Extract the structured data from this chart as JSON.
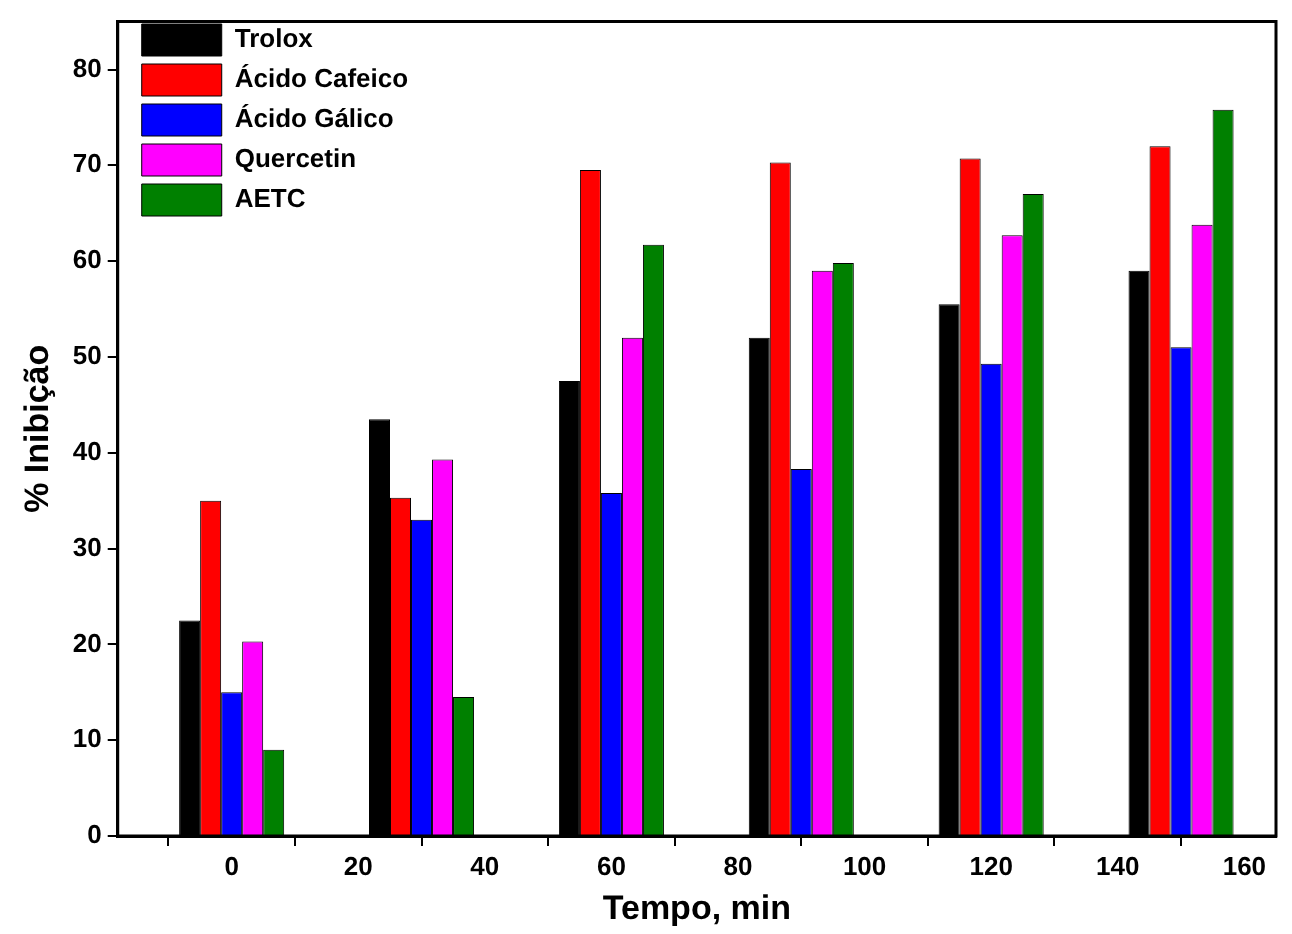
{
  "chart_data": {
    "type": "bar",
    "xlabel": "Tempo, min",
    "ylabel": "% Inibição",
    "x": [
      0,
      30,
      60,
      90,
      120,
      150
    ],
    "xlim": [
      -18,
      165
    ],
    "xticks": [
      0,
      20,
      40,
      60,
      80,
      100,
      120,
      140,
      160
    ],
    "ylim": [
      0,
      85
    ],
    "yticks": [
      0,
      10,
      20,
      30,
      40,
      50,
      60,
      70,
      80
    ],
    "grid": false,
    "legend": "top left",
    "series": [
      {
        "name": "Trolox",
        "color": "#000000",
        "values": [
          22.5,
          43.5,
          47.5,
          52,
          55.5,
          59
        ]
      },
      {
        "name": "Ácido Cafeico",
        "color": "#ff0000",
        "values": [
          35,
          35.3,
          69.5,
          70.3,
          70.7,
          72
        ]
      },
      {
        "name": "Ácido Gálico",
        "color": "#0000ff",
        "values": [
          15,
          33,
          35.8,
          38.3,
          49.3,
          51
        ]
      },
      {
        "name": "Quercetin",
        "color": "#ff00ff",
        "values": [
          20.3,
          39.3,
          52,
          59,
          62.7,
          63.8
        ]
      },
      {
        "name": "AETC",
        "color": "#008000",
        "values": [
          9,
          14.5,
          61.7,
          59.8,
          67,
          75.8
        ]
      }
    ]
  }
}
